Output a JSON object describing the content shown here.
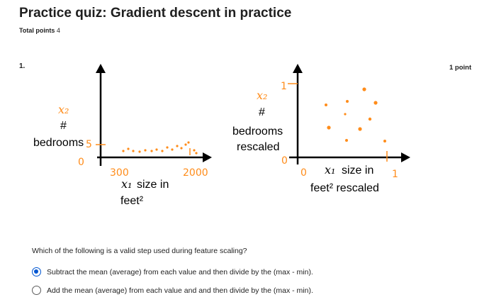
{
  "header": {
    "title": "Practice quiz: Gradient descent in practice",
    "total_points_label": "Total points",
    "total_points_value": "4"
  },
  "question": {
    "number": "1.",
    "points": "1 point",
    "prompt": "Which of the following is a valid step used during feature scaling?",
    "options": [
      {
        "label": "Subtract the mean (average) from each value and then divide by the (max - min).",
        "selected": true
      },
      {
        "label": "Add the mean (average) from each value and and then divide by the (max - min).",
        "selected": false
      }
    ]
  },
  "figure": {
    "left": {
      "y_var": "x₂",
      "y_hash": "#",
      "y_label": "bedrooms",
      "y_max": "5",
      "origin": "0",
      "x_min": "300",
      "x_max": "2000",
      "x_var": "x₁",
      "x_label_1": "size in",
      "x_label_2": "feet²"
    },
    "right": {
      "y_var": "x₂",
      "y_hash": "#",
      "y_label_1": "bedrooms",
      "y_label_2": "rescaled",
      "y_max": "1",
      "y_min": "0",
      "x_min": "0",
      "x_max": "1",
      "x_var": "x₁",
      "x_label_1": "size in",
      "x_label_2": "feet² rescaled"
    },
    "colors": {
      "ink": "#000000",
      "annotation": "#ff8c1a",
      "selected": "#0056d2"
    }
  }
}
